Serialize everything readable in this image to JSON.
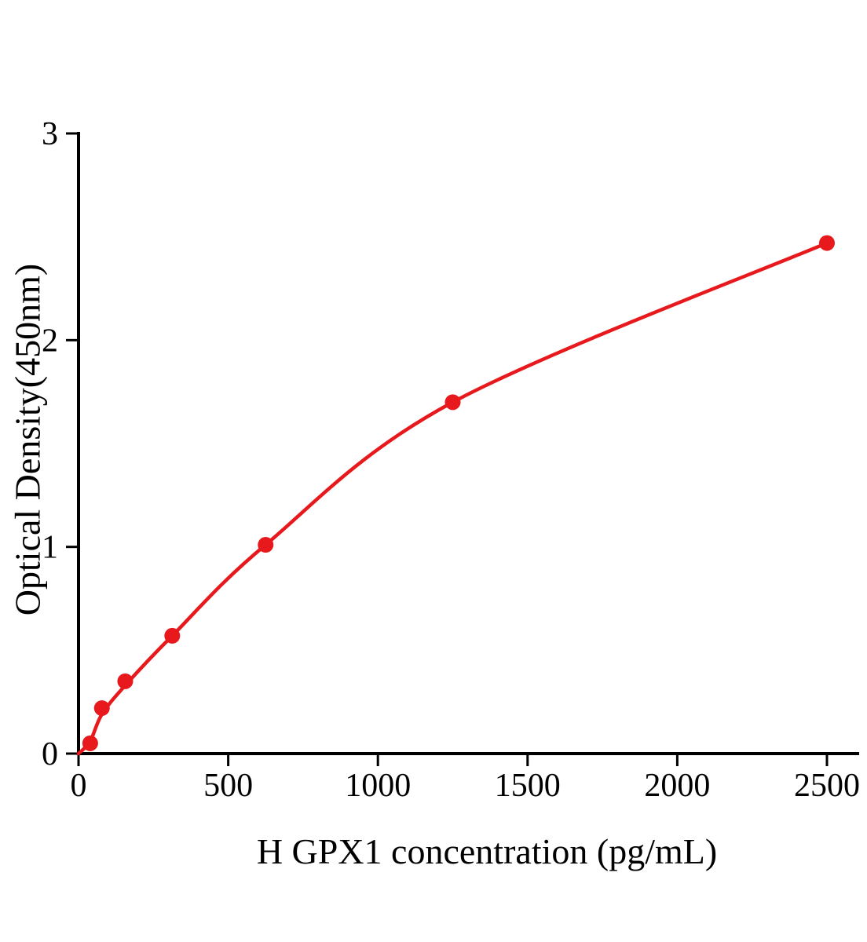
{
  "page": {
    "background": "#ffffff"
  },
  "chart_data": {
    "type": "scatter",
    "title": "",
    "xlabel": "H GPX1 concentration (pg/mL)",
    "ylabel": "Optical Density(450nm)",
    "x": [
      39,
      78,
      156,
      313,
      625,
      1250,
      2500
    ],
    "y": [
      0.05,
      0.22,
      0.35,
      0.57,
      1.01,
      1.7,
      2.47
    ],
    "curve": [
      [
        0,
        0
      ],
      [
        39,
        0.06
      ],
      [
        78,
        0.19
      ],
      [
        156,
        0.33
      ],
      [
        313,
        0.57
      ],
      [
        625,
        1.01
      ],
      [
        1250,
        1.7
      ],
      [
        2500,
        2.47
      ]
    ],
    "xlim": [
      0,
      2500
    ],
    "ylim": [
      0,
      3
    ],
    "xticks": [
      0,
      500,
      1000,
      1500,
      2000,
      2500
    ],
    "yticks": [
      0,
      1,
      2,
      3
    ],
    "grid": false,
    "legend": "none",
    "line_color": "#e8191c",
    "marker_color": "#e8191c",
    "axis_color": "#000000"
  }
}
